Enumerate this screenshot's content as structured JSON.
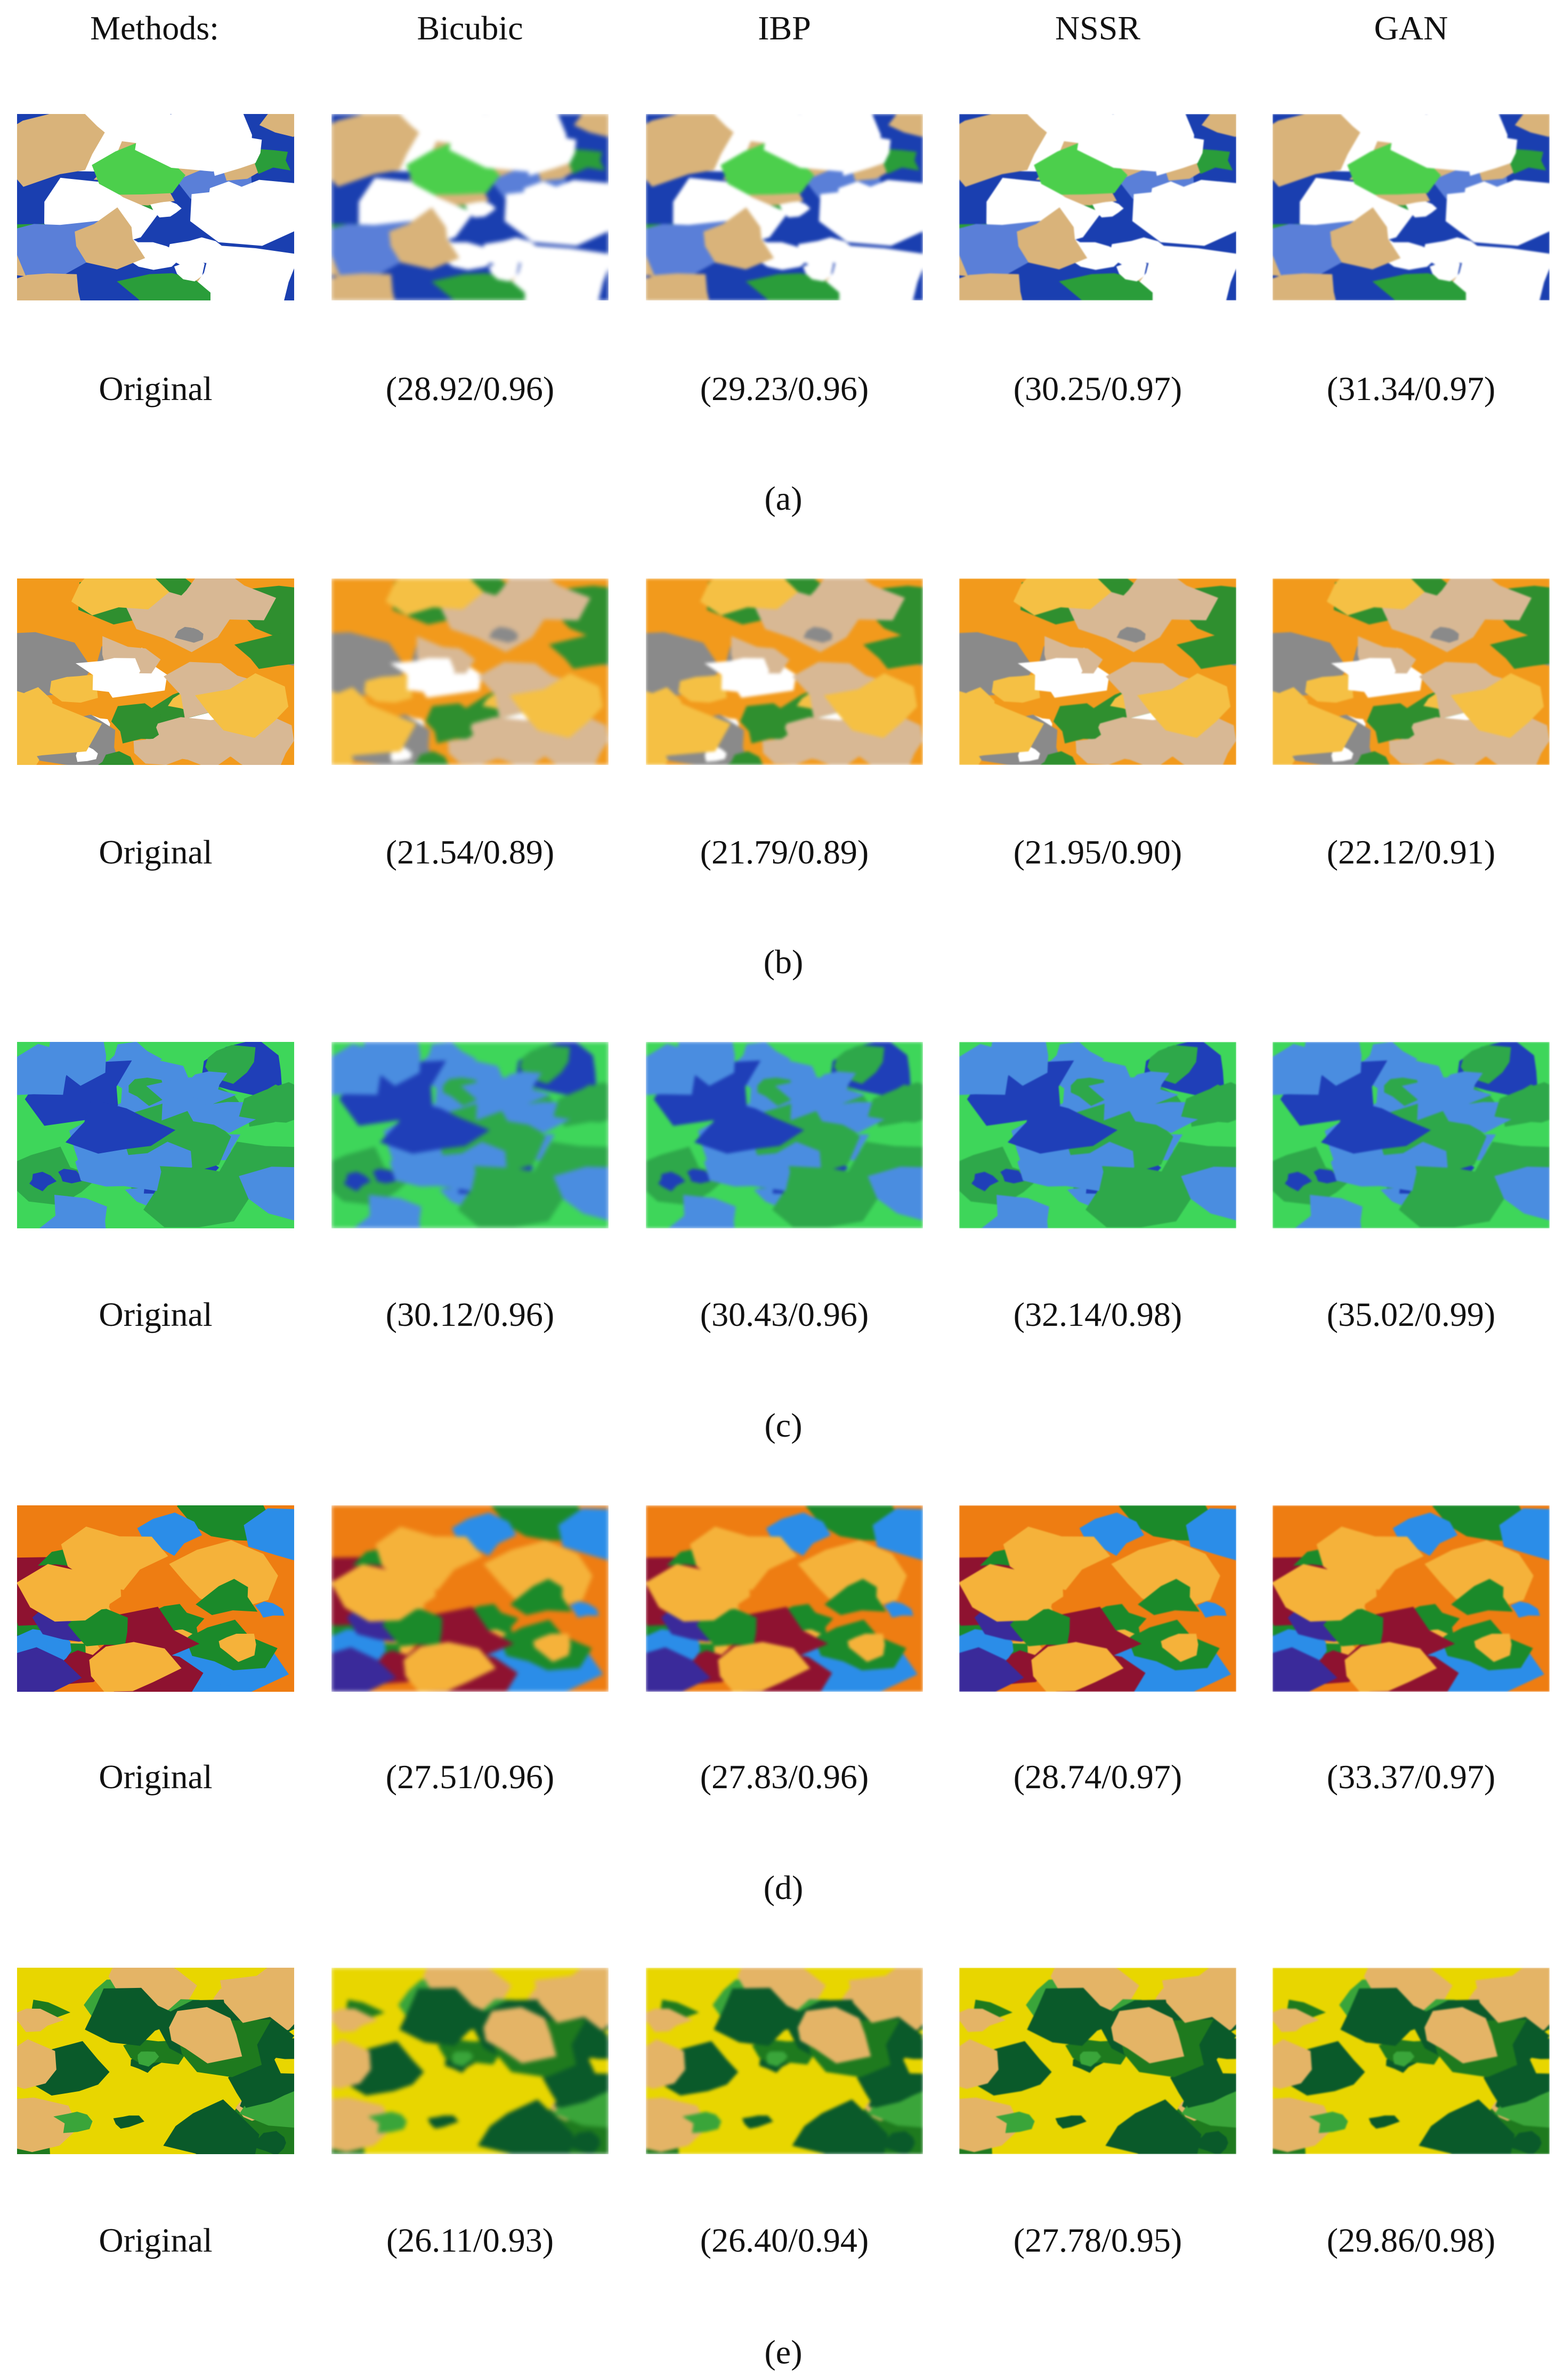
{
  "header": {
    "methods_label": "Methods:",
    "columns": [
      "Bicubic",
      "IBP",
      "NSSR",
      "GAN"
    ]
  },
  "rows": [
    {
      "label": "(a)",
      "original": "Original",
      "scores": [
        "(28.92/0.96)",
        "(29.23/0.96)",
        "(30.25/0.97)",
        "(31.34/0.97)"
      ]
    },
    {
      "label": "(b)",
      "original": "Original",
      "scores": [
        "(21.54/0.89)",
        "(21.79/0.89)",
        "(21.95/0.90)",
        "(22.12/0.91)"
      ]
    },
    {
      "label": "(c)",
      "original": "Original",
      "scores": [
        "(30.12/0.96)",
        "(30.43/0.96)",
        "(32.14/0.98)",
        "(35.02/0.99)"
      ]
    },
    {
      "label": "(d)",
      "original": "Original",
      "scores": [
        "(27.51/0.96)",
        "(27.83/0.96)",
        "(28.74/0.97)",
        "(33.37/0.97)"
      ]
    },
    {
      "label": "(e)",
      "original": "Original",
      "scores": [
        "(26.11/0.93)",
        "(26.40/0.94)",
        "(27.78/0.95)",
        "(29.86/0.98)"
      ]
    }
  ],
  "palettes": {
    "a": [
      "#1a3fb0",
      "#2a9d3a",
      "#4ccf4c",
      "#ffffff",
      "#d9b37a",
      "#5a7fd8"
    ],
    "b": [
      "#f29a1c",
      "#d8b894",
      "#2f8f2f",
      "#ffffff",
      "#8a8a8a",
      "#f5c044"
    ],
    "c": [
      "#3ed65a",
      "#1f3fb8",
      "#2ea84a",
      "#4a8de0"
    ],
    "d": [
      "#ee7d12",
      "#2b8de8",
      "#1b8a2a",
      "#f5b23a",
      "#8e1230",
      "#3a2a9a"
    ],
    "e": [
      "#e8d600",
      "#e4b466",
      "#1e7a1e",
      "#3aa53a",
      "#0a5a2a"
    ]
  }
}
